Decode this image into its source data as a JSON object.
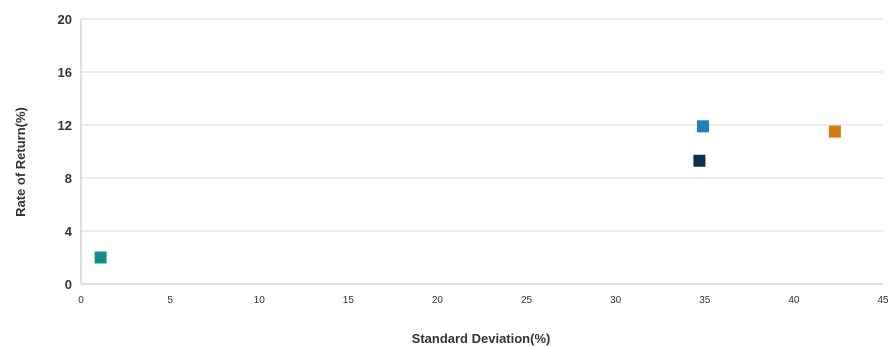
{
  "chart_data": {
    "type": "scatter",
    "title": "",
    "xlabel": "Standard Deviation(%)",
    "ylabel": "Rate of Return(%)",
    "xlim": [
      0,
      45
    ],
    "ylim": [
      0,
      20
    ],
    "xticks": [
      "0",
      "5",
      "10",
      "15",
      "20",
      "25",
      "30",
      "35",
      "40",
      "45"
    ],
    "yticks": [
      "0",
      "4",
      "8",
      "12",
      "16",
      "20"
    ],
    "grid": "horizontal",
    "legend": "none",
    "marker": "square",
    "points": [
      {
        "x": 1.1,
        "y": 2.0,
        "color": "#138d90"
      },
      {
        "x": 34.7,
        "y": 9.3,
        "color": "#0b2e52"
      },
      {
        "x": 34.9,
        "y": 11.9,
        "color": "#1f7fbf"
      },
      {
        "x": 42.3,
        "y": 11.5,
        "color": "#d47a12"
      }
    ]
  }
}
